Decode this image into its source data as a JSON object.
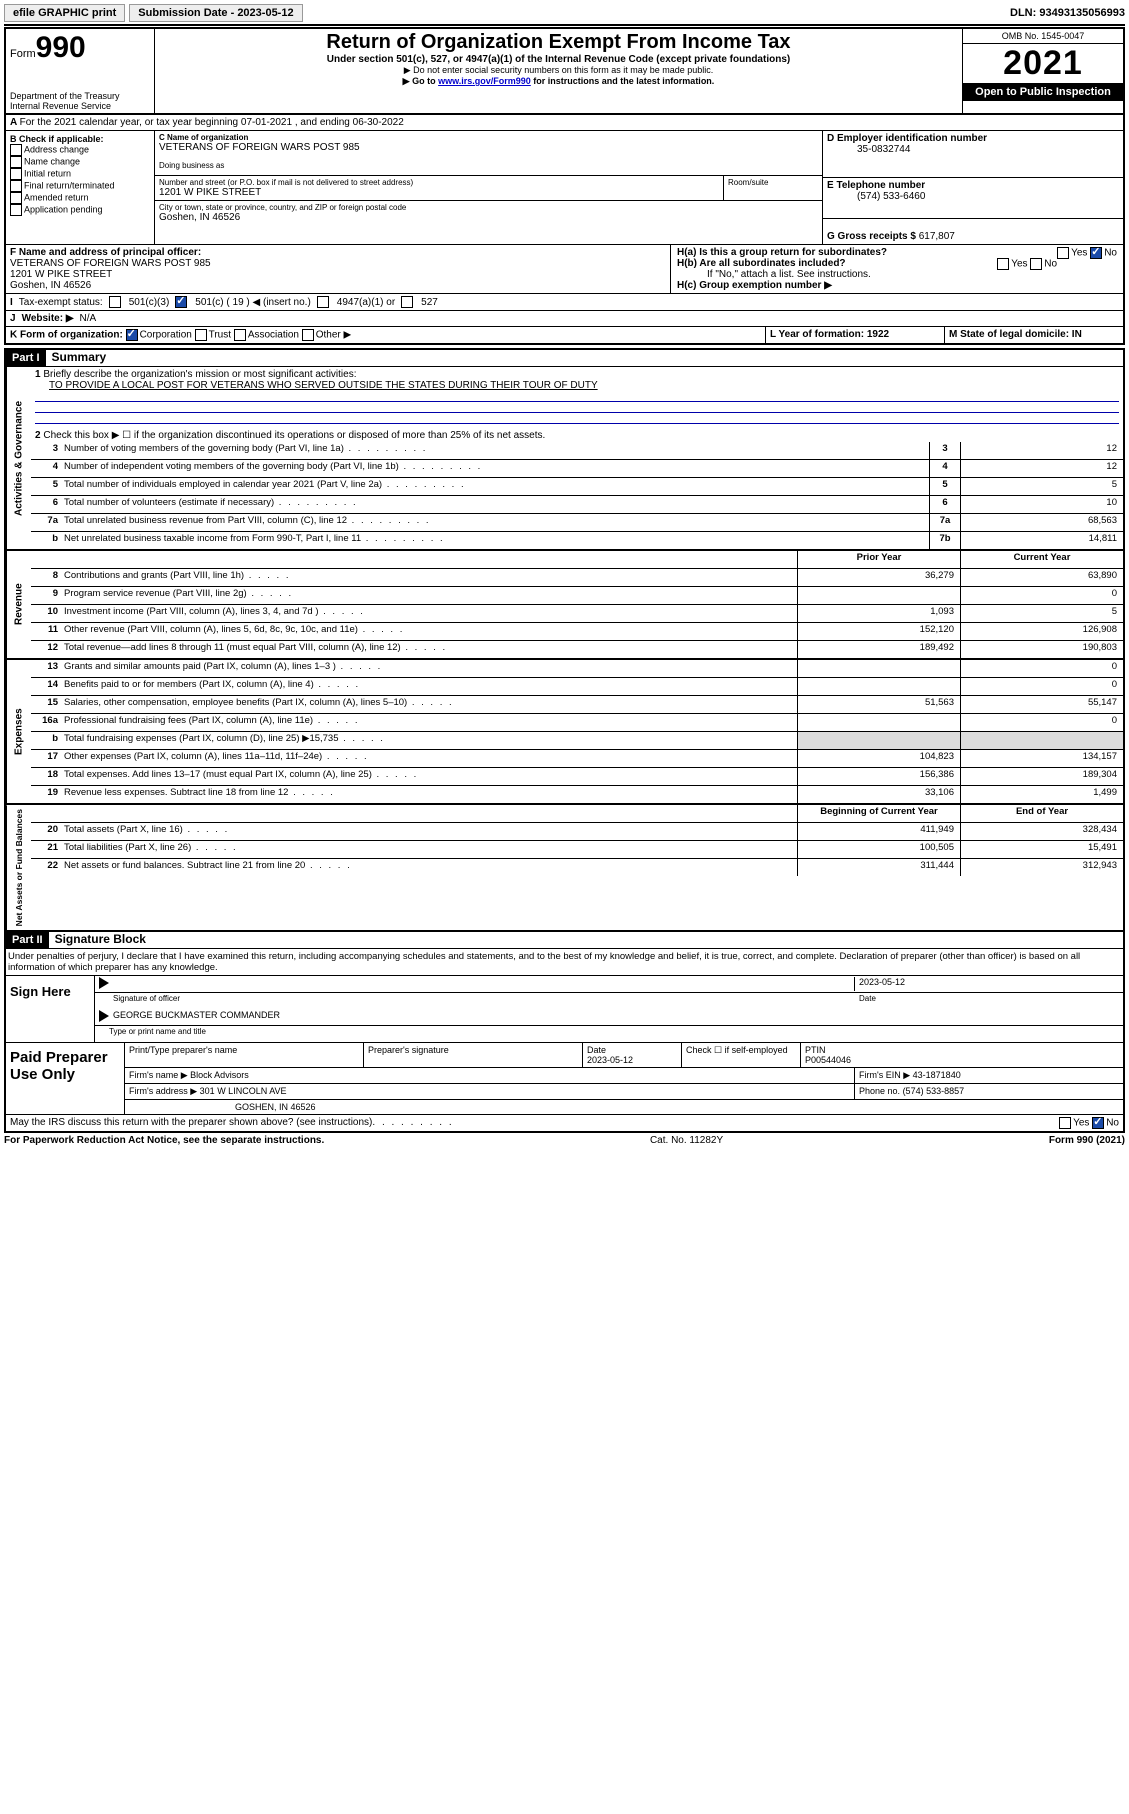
{
  "topbar": {
    "efile": "efile GRAPHIC print",
    "subdate_lbl": "Submission Date - 2023-05-12",
    "dln": "DLN: 93493135056993"
  },
  "header": {
    "form": "Form",
    "num": "990",
    "dept": "Department of the Treasury",
    "irs": "Internal Revenue Service",
    "title": "Return of Organization Exempt From Income Tax",
    "sub1": "Under section 501(c), 527, or 4947(a)(1) of the Internal Revenue Code (except private foundations)",
    "sub2": "▶ Do not enter social security numbers on this form as it may be made public.",
    "sub3a": "▶ Go to ",
    "sub3link": "www.irs.gov/Form990",
    "sub3b": " for instructions and the latest information.",
    "omb": "OMB No. 1545-0047",
    "year": "2021",
    "open": "Open to Public Inspection"
  },
  "A": {
    "text": "For the 2021 calendar year, or tax year beginning 07-01-2021    , and ending 06-30-2022"
  },
  "B": {
    "hdr": "B Check if applicable:",
    "items": [
      "Address change",
      "Name change",
      "Initial return",
      "Final return/terminated",
      "Amended return",
      "Application pending"
    ]
  },
  "C": {
    "name_lbl": "C Name of organization",
    "name": "VETERANS OF FOREIGN WARS POST 985",
    "dba_lbl": "Doing business as",
    "addr_lbl": "Number and street (or P.O. box if mail is not delivered to street address)",
    "room_lbl": "Room/suite",
    "addr": "1201 W PIKE STREET",
    "city_lbl": "City or town, state or province, country, and ZIP or foreign postal code",
    "city": "Goshen, IN  46526"
  },
  "D": {
    "lbl": "D Employer identification number",
    "val": "35-0832744"
  },
  "E": {
    "lbl": "E Telephone number",
    "val": "(574) 533-6460"
  },
  "G": {
    "lbl": "G Gross receipts $",
    "val": "617,807"
  },
  "F": {
    "lbl": "F  Name and address of principal officer:",
    "l1": "VETERANS OF FOREIGN WARS POST 985",
    "l2": "1201 W PIKE STREET",
    "l3": "Goshen, IN  46526"
  },
  "H": {
    "a": "H(a)  Is this a group return for subordinates?",
    "b": "H(b)  Are all subordinates included?",
    "bnote": "If \"No,\" attach a list. See instructions.",
    "c": "H(c)  Group exemption number ▶",
    "yes": "Yes",
    "no": "No"
  },
  "I": {
    "lbl": "Tax-exempt status:",
    "o1": "501(c)(3)",
    "o2a": "501(c) ( 19 ) ◀ (insert no.)",
    "o3": "4947(a)(1) or",
    "o4": "527"
  },
  "J": {
    "lbl": "Website: ▶",
    "val": "N/A"
  },
  "K": {
    "lbl": "K Form of organization:",
    "o": [
      "Corporation",
      "Trust",
      "Association",
      "Other ▶"
    ]
  },
  "L": {
    "lbl": "L Year of formation: 1922"
  },
  "M": {
    "lbl": "M State of legal domicile: IN"
  },
  "part1": {
    "hdr": "Part I",
    "title": "Summary"
  },
  "s1": {
    "q": "Briefly describe the organization's mission or most significant activities:",
    "a": "TO PROVIDE A LOCAL POST FOR VETERANS WHO SERVED OUTSIDE THE STATES DURING THEIR TOUR OF DUTY"
  },
  "s2": "Check this box ▶ ☐  if the organization discontinued its operations or disposed of more than 25% of its net assets.",
  "lines_gov": [
    {
      "n": "3",
      "t": "Number of voting members of the governing body (Part VI, line 1a)",
      "box": "3",
      "v": "12"
    },
    {
      "n": "4",
      "t": "Number of independent voting members of the governing body (Part VI, line 1b)",
      "box": "4",
      "v": "12"
    },
    {
      "n": "5",
      "t": "Total number of individuals employed in calendar year 2021 (Part V, line 2a)",
      "box": "5",
      "v": "5"
    },
    {
      "n": "6",
      "t": "Total number of volunteers (estimate if necessary)",
      "box": "6",
      "v": "10"
    },
    {
      "n": "7a",
      "t": "Total unrelated business revenue from Part VIII, column (C), line 12",
      "box": "7a",
      "v": "68,563"
    },
    {
      "n": "b",
      "t": "Net unrelated business taxable income from Form 990-T, Part I, line 11",
      "box": "7b",
      "v": "14,811"
    }
  ],
  "colhdr": {
    "py": "Prior Year",
    "cy": "Current Year"
  },
  "lines_rev": [
    {
      "n": "8",
      "t": "Contributions and grants (Part VIII, line 1h)",
      "py": "36,279",
      "cy": "63,890"
    },
    {
      "n": "9",
      "t": "Program service revenue (Part VIII, line 2g)",
      "py": "",
      "cy": "0"
    },
    {
      "n": "10",
      "t": "Investment income (Part VIII, column (A), lines 3, 4, and 7d )",
      "py": "1,093",
      "cy": "5"
    },
    {
      "n": "11",
      "t": "Other revenue (Part VIII, column (A), lines 5, 6d, 8c, 9c, 10c, and 11e)",
      "py": "152,120",
      "cy": "126,908"
    },
    {
      "n": "12",
      "t": "Total revenue—add lines 8 through 11 (must equal Part VIII, column (A), line 12)",
      "py": "189,492",
      "cy": "190,803"
    }
  ],
  "lines_exp": [
    {
      "n": "13",
      "t": "Grants and similar amounts paid (Part IX, column (A), lines 1–3 )",
      "py": "",
      "cy": "0"
    },
    {
      "n": "14",
      "t": "Benefits paid to or for members (Part IX, column (A), line 4)",
      "py": "",
      "cy": "0"
    },
    {
      "n": "15",
      "t": "Salaries, other compensation, employee benefits (Part IX, column (A), lines 5–10)",
      "py": "51,563",
      "cy": "55,147"
    },
    {
      "n": "16a",
      "t": "Professional fundraising fees (Part IX, column (A), line 11e)",
      "py": "",
      "cy": "0"
    },
    {
      "n": "b",
      "t": "Total fundraising expenses (Part IX, column (D), line 25) ▶15,735",
      "py": "SHADE",
      "cy": "SHADE"
    },
    {
      "n": "17",
      "t": "Other expenses (Part IX, column (A), lines 11a–11d, 11f–24e)",
      "py": "104,823",
      "cy": "134,157"
    },
    {
      "n": "18",
      "t": "Total expenses. Add lines 13–17 (must equal Part IX, column (A), line 25)",
      "py": "156,386",
      "cy": "189,304"
    },
    {
      "n": "19",
      "t": "Revenue less expenses. Subtract line 18 from line 12",
      "py": "33,106",
      "cy": "1,499"
    }
  ],
  "colhdr2": {
    "py": "Beginning of Current Year",
    "cy": "End of Year"
  },
  "lines_net": [
    {
      "n": "20",
      "t": "Total assets (Part X, line 16)",
      "py": "411,949",
      "cy": "328,434"
    },
    {
      "n": "21",
      "t": "Total liabilities (Part X, line 26)",
      "py": "100,505",
      "cy": "15,491"
    },
    {
      "n": "22",
      "t": "Net assets or fund balances. Subtract line 21 from line 20",
      "py": "311,444",
      "cy": "312,943"
    }
  ],
  "vlabels": {
    "gov": "Activities & Governance",
    "rev": "Revenue",
    "exp": "Expenses",
    "net": "Net Assets or Fund Balances"
  },
  "part2": {
    "hdr": "Part II",
    "title": "Signature Block"
  },
  "penalty": "Under penalties of perjury, I declare that I have examined this return, including accompanying schedules and statements, and to the best of my knowledge and belief, it is true, correct, and complete. Declaration of preparer (other than officer) is based on all information of which preparer has any knowledge.",
  "sign": {
    "here": "Sign Here",
    "sig_lbl": "Signature of officer",
    "date_lbl": "Date",
    "date": "2023-05-12",
    "name": "GEORGE BUCKMASTER  COMMANDER",
    "name_lbl": "Type or print name and title"
  },
  "prep": {
    "title": "Paid Preparer Use Only",
    "h1": "Print/Type preparer's name",
    "h2": "Preparer's signature",
    "h3": "Date",
    "h3v": "2023-05-12",
    "h4": "Check ☐ if self-employed",
    "h5": "PTIN",
    "h5v": "P00544046",
    "firm_lbl": "Firm's name     ▶",
    "firm": "Block Advisors",
    "ein_lbl": "Firm's EIN ▶",
    "ein": "43-1871840",
    "addr_lbl": "Firm's address ▶",
    "addr1": "301 W LINCOLN AVE",
    "addr2": "GOSHEN, IN  46526",
    "phone_lbl": "Phone no.",
    "phone": "(574) 533-8857"
  },
  "discuss": "May the IRS discuss this return with the preparer shown above? (see instructions)",
  "footer": {
    "left": "For Paperwork Reduction Act Notice, see the separate instructions.",
    "mid": "Cat. No. 11282Y",
    "right": "Form 990 (2021)"
  }
}
